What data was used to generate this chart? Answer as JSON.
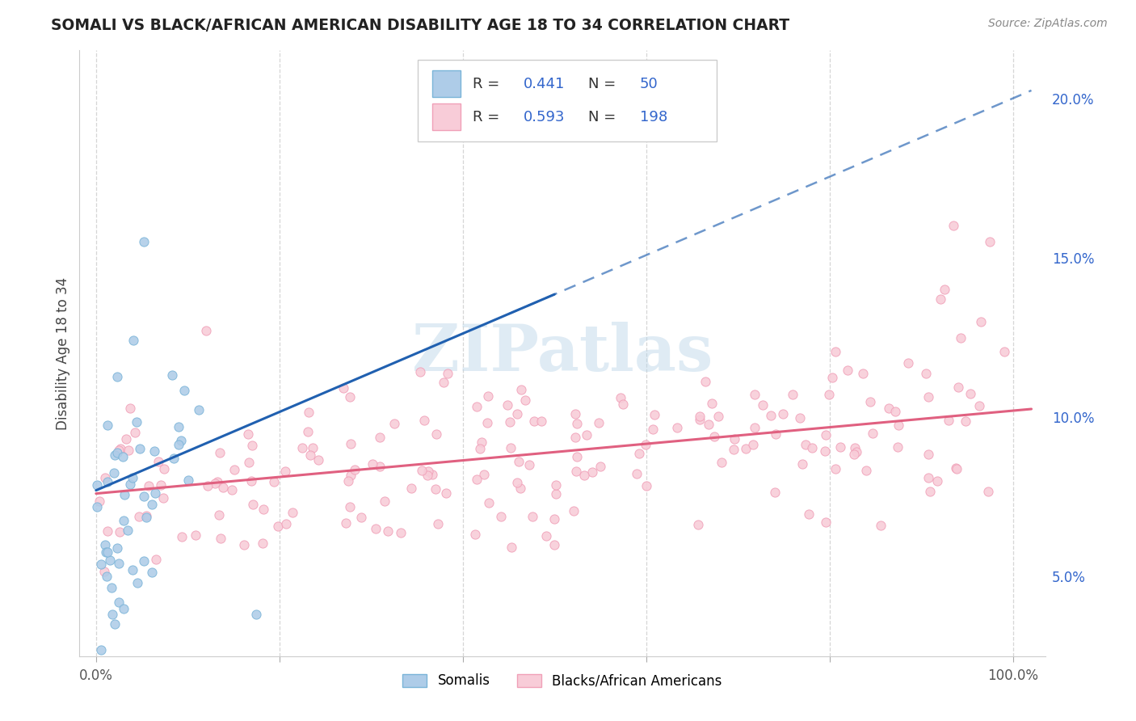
{
  "title": "SOMALI VS BLACK/AFRICAN AMERICAN DISABILITY AGE 18 TO 34 CORRELATION CHART",
  "source": "Source: ZipAtlas.com",
  "ylabel": "Disability Age 18 to 34",
  "somali_color": "#7ab4d8",
  "somali_fill": "#aecce8",
  "black_color": "#f0a0b8",
  "black_fill": "#f8ccd8",
  "trend_somali_color": "#2060b0",
  "trend_black_color": "#e06080",
  "watermark": "ZIPatlas",
  "somali_label": "Somalis",
  "black_label": "Blacks/African Americans",
  "legend_r1_val": "0.441",
  "legend_n1_val": "50",
  "legend_r2_val": "0.593",
  "legend_n2_val": "198",
  "legend_text_color": "#3366cc",
  "legend_label_color": "#333333"
}
